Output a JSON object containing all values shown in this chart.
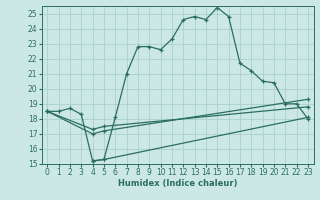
{
  "xlabel": "Humidex (Indice chaleur)",
  "bg_color": "#cce8e4",
  "grid_color": "#aacfcc",
  "line_color": "#2a6e63",
  "ylim": [
    15,
    25.5
  ],
  "xlim": [
    -0.5,
    23.5
  ],
  "yticks": [
    15,
    16,
    17,
    18,
    19,
    20,
    21,
    22,
    23,
    24,
    25
  ],
  "xticks": [
    0,
    1,
    2,
    3,
    4,
    5,
    6,
    7,
    8,
    9,
    10,
    11,
    12,
    13,
    14,
    15,
    16,
    17,
    18,
    19,
    20,
    21,
    22,
    23
  ],
  "curve1_x": [
    0,
    1,
    2,
    3,
    4,
    5,
    6,
    7,
    8,
    9,
    10,
    11,
    12,
    13,
    14,
    15,
    16,
    17,
    18,
    19,
    20,
    21,
    22,
    23
  ],
  "curve1_y": [
    18.5,
    18.5,
    18.7,
    18.3,
    15.2,
    15.3,
    18.1,
    21.0,
    22.8,
    22.8,
    22.6,
    23.3,
    24.6,
    24.8,
    24.6,
    25.4,
    24.8,
    21.7,
    21.2,
    20.5,
    20.4,
    19.0,
    19.0,
    18.0
  ],
  "curve2_x": [
    0,
    4,
    5,
    23
  ],
  "curve2_y": [
    18.5,
    17.3,
    17.5,
    18.8
  ],
  "curve3_x": [
    0,
    4,
    5,
    23
  ],
  "curve3_y": [
    18.5,
    17.0,
    17.2,
    19.3
  ],
  "curve4_x": [
    4,
    5,
    23
  ],
  "curve4_y": [
    15.2,
    15.3,
    18.1
  ]
}
